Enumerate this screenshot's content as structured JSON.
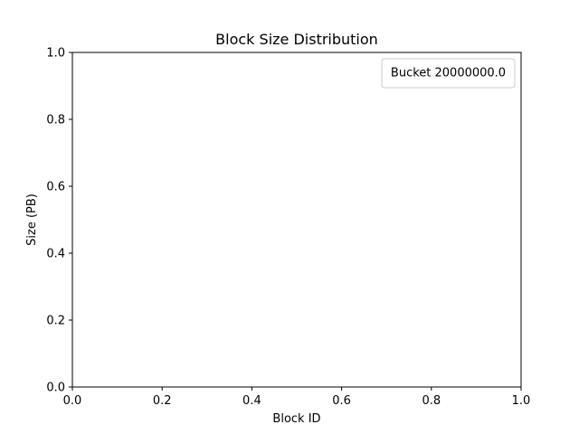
{
  "chart_data": {
    "type": "line",
    "title": "Block Size Distribution",
    "xlabel": "Block ID",
    "ylabel": "Size (PB)",
    "xlim": [
      0.0,
      1.0
    ],
    "ylim": [
      0.0,
      1.0
    ],
    "xticks": [
      "0.0",
      "0.2",
      "0.4",
      "0.6",
      "0.8",
      "1.0"
    ],
    "yticks": [
      "0.0",
      "0.2",
      "0.4",
      "0.6",
      "0.8",
      "1.0"
    ],
    "grid": false,
    "legend": {
      "placement": "top-right",
      "title": "Bucket 20000000.0"
    },
    "series": []
  }
}
